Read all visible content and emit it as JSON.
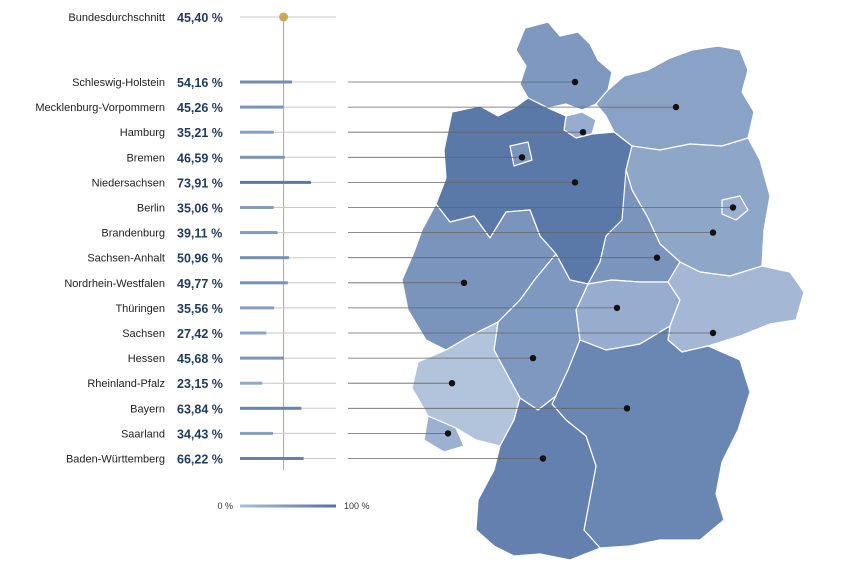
{
  "average": {
    "label": "Bundesdurchschnitt",
    "value_text": "45,40 %",
    "value": 45.4
  },
  "legend": {
    "min_label": "0 %",
    "max_label": "100 %"
  },
  "colors": {
    "bar_light": "#a9bfd8",
    "bar_dark": "#50719f",
    "avg_marker": "#c9a75a",
    "avg_line": "#d49a70",
    "connector": "#666666",
    "value_text": "#1f3a5f"
  },
  "chart_data": {
    "type": "bar",
    "categories": [
      "Schleswig-Holstein",
      "Mecklenburg-Vorpommern",
      "Hamburg",
      "Bremen",
      "Niedersachsen",
      "Berlin",
      "Brandenburg",
      "Sachsen-Anhalt",
      "Nordrhein-Westfalen",
      "Thüringen",
      "Sachsen",
      "Hessen",
      "Rheinland-Pfalz",
      "Bayern",
      "Saarland",
      "Baden-Württemberg"
    ],
    "values": [
      54.16,
      45.26,
      35.21,
      46.59,
      73.91,
      35.06,
      39.11,
      50.96,
      49.77,
      35.56,
      27.42,
      45.68,
      23.15,
      63.84,
      34.43,
      66.22
    ],
    "value_labels": [
      "54,16 %",
      "45,26 %",
      "35,21 %",
      "46,59 %",
      "73,91 %",
      "35,06 %",
      "39,11 %",
      "50,96 %",
      "49,77 %",
      "35,56 %",
      "27,42 %",
      "45,68 %",
      "23,15 %",
      "63,84 %",
      "34,43 %",
      "66,22 %"
    ],
    "ylim": [
      0,
      100
    ],
    "reference_line": 45.4
  }
}
